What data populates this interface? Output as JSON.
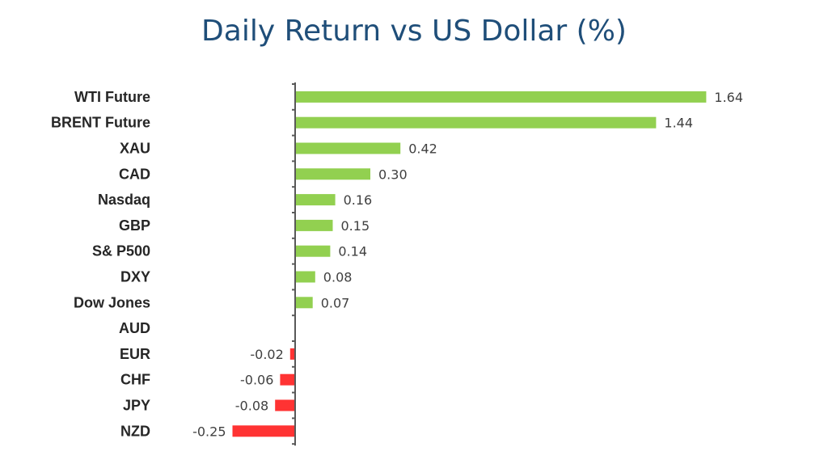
{
  "chart_data": {
    "type": "bar",
    "orientation": "horizontal",
    "title": "Daily Return vs US Dollar (%)",
    "categories": [
      "WTI Future",
      "BRENT Future",
      "XAU",
      "CAD",
      "Nasdaq",
      "GBP",
      "S& P500",
      "DXY",
      "Dow Jones",
      "AUD",
      "EUR",
      "CHF",
      "JPY",
      "NZD"
    ],
    "values": [
      1.64,
      1.44,
      0.42,
      0.3,
      0.16,
      0.15,
      0.14,
      0.08,
      0.07,
      0.0,
      -0.02,
      -0.06,
      -0.08,
      -0.25
    ],
    "value_labels": [
      "1.64",
      "1.44",
      "0.42",
      "0.30",
      "0.16",
      "0.15",
      "0.14",
      "0.08",
      "0.07",
      "",
      "-0.02",
      "-0.06",
      "-0.08",
      "-0.25"
    ],
    "xlim": [
      -0.25,
      1.64
    ],
    "grid": false,
    "legend": "none",
    "colors": {
      "positive": "#92D050",
      "negative": "#FF3333",
      "axis": "#595959",
      "title": "#1F4E79"
    }
  }
}
